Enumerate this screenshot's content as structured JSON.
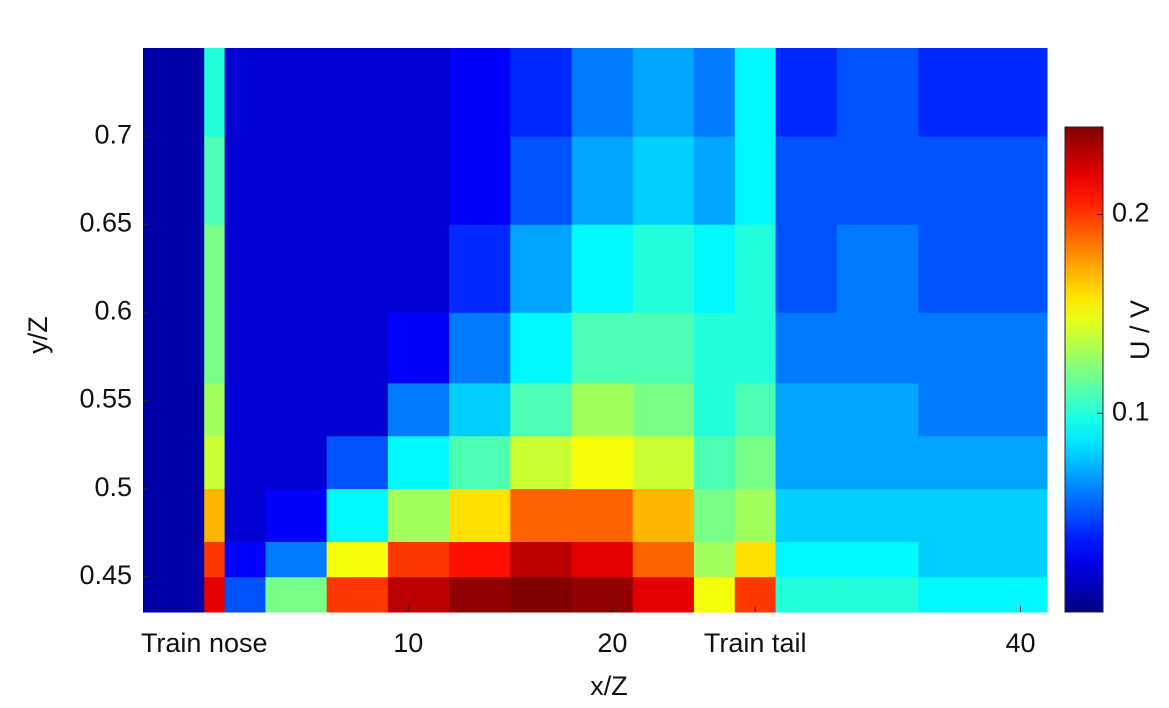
{
  "chart_data": {
    "type": "heatmap",
    "xlabel": "x/Z",
    "ylabel": "y/Z",
    "colorbar_label": "U / V",
    "colormap": "jet",
    "xlim": [
      -3,
      41.3
    ],
    "ylim": [
      0.43,
      0.75
    ],
    "clim": [
      0,
      0.244
    ],
    "xticks": [
      {
        "value": 0,
        "label": "Train nose"
      },
      10,
      20,
      {
        "value": 27,
        "label": "Train tail"
      },
      40
    ],
    "yticks": [
      0.45,
      0.5,
      0.55,
      0.6,
      0.65,
      0.7
    ],
    "cticks": [
      0.1,
      0.2
    ],
    "xbins": [
      -3,
      -1,
      0,
      1,
      3,
      6,
      9,
      12,
      15,
      18,
      21,
      24,
      26,
      28,
      31,
      35,
      41.3
    ],
    "ybins": [
      0.43,
      0.45,
      0.47,
      0.5,
      0.53,
      0.56,
      0.6,
      0.65,
      0.7,
      0.75
    ],
    "values": [
      [
        0.01,
        0.01,
        0.01,
        0.01,
        0.01,
        0.01,
        0.01,
        0.01,
        0.01
      ],
      [
        0.01,
        0.01,
        0.01,
        0.01,
        0.01,
        0.01,
        0.01,
        0.01,
        0.01
      ],
      [
        0.22,
        0.2,
        0.17,
        0.14,
        0.13,
        0.12,
        0.12,
        0.11,
        0.1
      ],
      [
        0.05,
        0.03,
        0.02,
        0.02,
        0.02,
        0.02,
        0.02,
        0.02,
        0.02
      ],
      [
        0.12,
        0.06,
        0.03,
        0.02,
        0.02,
        0.02,
        0.02,
        0.02,
        0.02
      ],
      [
        0.2,
        0.15,
        0.09,
        0.05,
        0.02,
        0.02,
        0.02,
        0.02,
        0.02
      ],
      [
        0.23,
        0.2,
        0.13,
        0.09,
        0.06,
        0.03,
        0.02,
        0.02,
        0.02
      ],
      [
        0.24,
        0.21,
        0.16,
        0.11,
        0.08,
        0.06,
        0.04,
        0.03,
        0.03
      ],
      [
        0.25,
        0.23,
        0.19,
        0.14,
        0.11,
        0.09,
        0.07,
        0.05,
        0.04
      ],
      [
        0.24,
        0.22,
        0.19,
        0.15,
        0.13,
        0.11,
        0.09,
        0.07,
        0.06
      ],
      [
        0.22,
        0.19,
        0.17,
        0.14,
        0.12,
        0.11,
        0.1,
        0.08,
        0.07
      ],
      [
        0.15,
        0.13,
        0.12,
        0.11,
        0.1,
        0.1,
        0.09,
        0.07,
        0.06
      ],
      [
        0.2,
        0.16,
        0.13,
        0.12,
        0.11,
        0.1,
        0.1,
        0.09,
        0.09
      ],
      [
        0.1,
        0.09,
        0.08,
        0.07,
        0.07,
        0.06,
        0.05,
        0.05,
        0.04
      ],
      [
        0.1,
        0.09,
        0.08,
        0.07,
        0.07,
        0.06,
        0.06,
        0.05,
        0.05
      ],
      [
        0.09,
        0.08,
        0.08,
        0.07,
        0.06,
        0.06,
        0.05,
        0.05,
        0.04
      ]
    ]
  }
}
